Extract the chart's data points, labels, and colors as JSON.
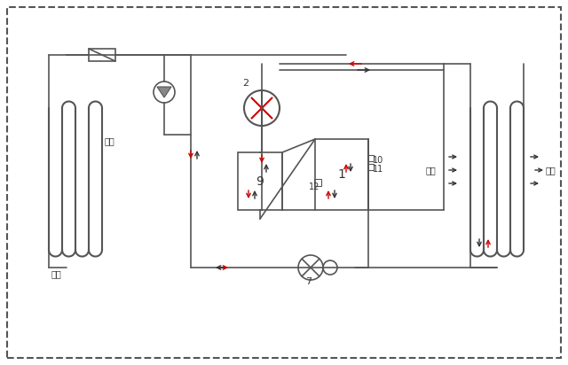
{
  "bg_color": "#ffffff",
  "border_color": "#555555",
  "line_color": "#555555",
  "red_color": "#cc0000",
  "black_color": "#333333",
  "figsize": [
    6.4,
    4.12
  ],
  "dpi": 100,
  "labels": {
    "inlet_water": "进水",
    "outlet_water": "出水",
    "inlet_air": "进风",
    "outlet_air": "出风",
    "comp_label": "2",
    "tank_label": "9",
    "evap_label": "1",
    "exp_label": "7",
    "label11": "11",
    "label10": "10",
    "label12": "12"
  }
}
